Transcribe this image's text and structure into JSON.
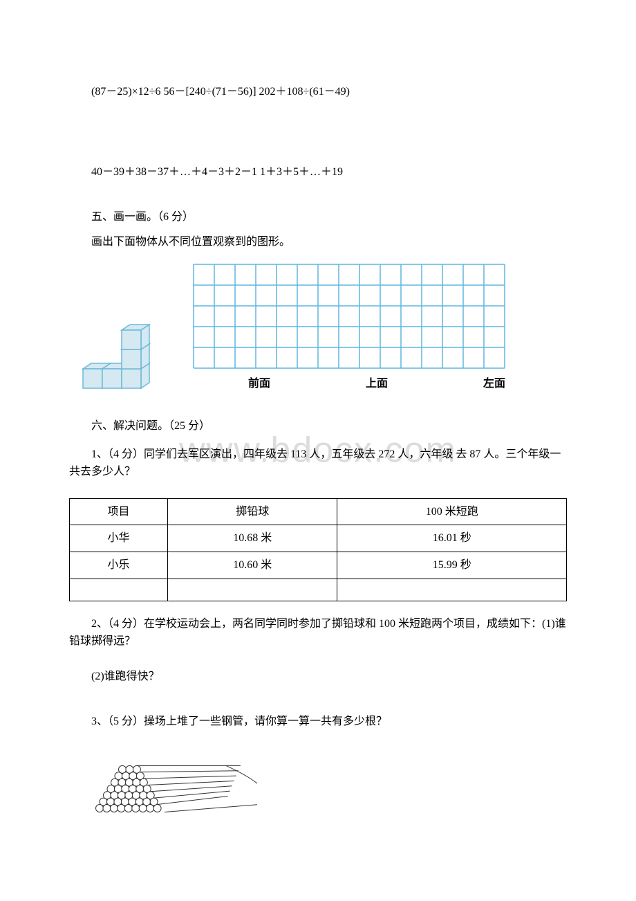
{
  "watermark": "www.bdocx.com",
  "expressions": {
    "line1": "(87－25)×12÷6 56－[240÷(71－56)] 202＋108÷(61－49)",
    "line2": "40－39＋38－37＋…＋4－3＋2－1 1＋3＋5＋…＋19"
  },
  "section5": {
    "title": "五、画一画。（6 分）",
    "instruction": "画出下面物体从不同位置观察到的图形。",
    "views": {
      "front": "前面",
      "top": "上面",
      "left": "左面"
    }
  },
  "section6": {
    "title": "六、解决问题。（25 分）",
    "q1": "1、（4 分）同学们去军区演出，四年级去 113 人，五年级去 272 人，六年级 去 87 人。三个年级一共去多少人？",
    "table": {
      "headers": [
        "项目",
        "掷铅球",
        "100 米短跑"
      ],
      "rows": [
        [
          "小华",
          "10.68 米",
          "16.01 秒"
        ],
        [
          "小乐",
          "10.60 米",
          "15.99 秒"
        ],
        [
          "",
          "",
          ""
        ]
      ]
    },
    "q2": "2、（4 分）在学校运动会上，两名同学同时参加了掷铅球和 100 米短跑两个项目，成绩如下：(1)谁铅球掷得远？",
    "q2_sub": "(2)谁跑得快？",
    "q3": "3、（5 分）操场上堆了一些钢管，请你算一算一共有多少根？"
  },
  "grid": {
    "cols": 15,
    "rows": 5,
    "cell": 30,
    "line_color": "#5fb5e0",
    "line_width": 1.5
  },
  "cube": {
    "face_color": "#d4e9f2",
    "stroke_color": "#6fb8d8"
  },
  "pipes": {
    "stroke": "#333333",
    "rows": 7
  }
}
